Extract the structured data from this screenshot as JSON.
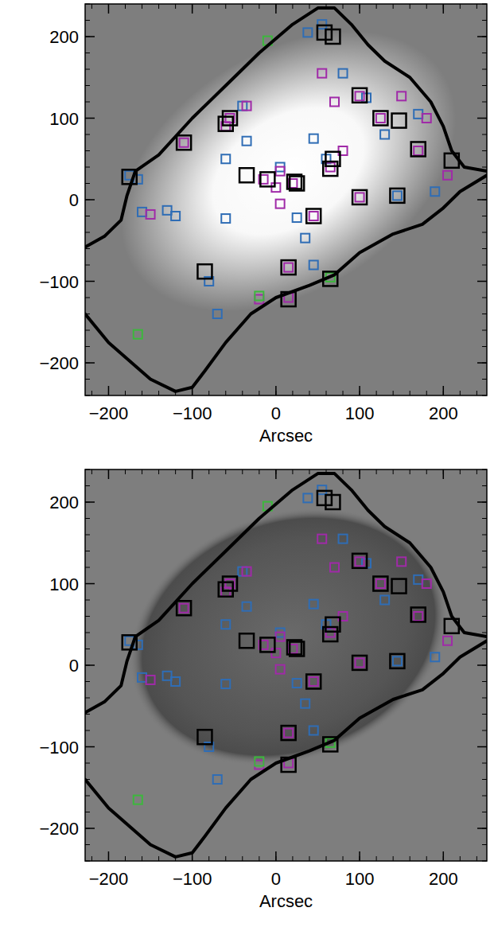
{
  "chart_data": [
    {
      "type": "scatter",
      "x_label": "Arcsec",
      "xlim": [
        -228,
        252
      ],
      "ylim": [
        -240,
        240
      ],
      "xticks": [
        {
          "value": -200,
          "label": "−200"
        },
        {
          "value": -100,
          "label": "−100"
        },
        0,
        100,
        200
      ],
      "yticks": [
        {
          "value": -200,
          "label": "−200"
        },
        {
          "value": -100,
          "label": "−100"
        },
        0,
        100,
        200
      ],
      "series": [
        {
          "color": "#2f6db5",
          "marker": "square",
          "x": [
            -165,
            -160,
            -130,
            -120,
            -60,
            -35,
            -40,
            -60,
            -80,
            -70,
            5,
            45,
            25,
            35,
            45,
            80,
            108,
            130,
            170,
            190,
            38,
            55,
            -175,
            60,
            145
          ],
          "values": [
            25,
            -15,
            -13,
            -20,
            50,
            72,
            115,
            -23,
            -100,
            -140,
            40,
            75,
            -22,
            -47,
            -80,
            155,
            125,
            80,
            105,
            10,
            205,
            215,
            30,
            50,
            5
          ]
        },
        {
          "color": "#a02aa8",
          "marker": "square",
          "x": [
            -150,
            -110,
            -55,
            -35,
            -60,
            0,
            5,
            5,
            -15,
            20,
            65,
            80,
            70,
            55,
            100,
            150,
            180,
            170,
            205,
            -20,
            15,
            15,
            45,
            100,
            125
          ],
          "values": [
            -18,
            70,
            100,
            115,
            90,
            15,
            35,
            -5,
            25,
            20,
            40,
            60,
            120,
            155,
            127,
            127,
            100,
            60,
            30,
            -122,
            -83,
            -120,
            -20,
            3,
            100
          ]
        },
        {
          "color": "#3cb83c",
          "marker": "square",
          "x": [
            -10,
            -165,
            -20,
            65
          ],
          "values": [
            195,
            -165,
            -118,
            -95
          ]
        },
        {
          "color": "#000000",
          "marker": "big-square",
          "x": [
            -110,
            -175,
            -55,
            -60,
            -35,
            -10,
            25,
            22,
            45,
            65,
            68,
            100,
            125,
            147,
            170,
            210,
            145,
            100,
            -85,
            15,
            15,
            65,
            58,
            68
          ],
          "values": [
            70,
            28,
            100,
            93,
            30,
            25,
            20,
            22,
            -20,
            38,
            50,
            128,
            100,
            97,
            62,
            48,
            5,
            3,
            -88,
            -83,
            -122,
            -97,
            205,
            200
          ]
        },
        {
          "type": "line",
          "color": "#000000",
          "line_style": "solid",
          "x": [
            -228,
            -205,
            -185,
            -178,
            -168,
            -140,
            -100,
            -60,
            -20,
            20,
            50,
            70,
            90,
            110,
            130,
            160,
            185,
            200,
            210,
            225,
            252
          ],
          "values": [
            -58,
            -45,
            -25,
            5,
            35,
            55,
            100,
            140,
            180,
            215,
            235,
            235,
            215,
            190,
            170,
            150,
            120,
            90,
            60,
            40,
            35
          ]
        },
        {
          "type": "line",
          "color": "#000000",
          "line_style": "solid",
          "x": [
            -228,
            -200,
            -150,
            -120,
            -100,
            -85,
            -60,
            -30,
            0,
            40,
            70,
            100,
            140,
            175,
            200,
            220,
            252
          ],
          "values": [
            -140,
            -175,
            -220,
            -235,
            -230,
            -210,
            -175,
            -140,
            -120,
            -105,
            -92,
            -65,
            -42,
            -30,
            -10,
            10,
            30
          ]
        }
      ]
    },
    {
      "type": "scatter",
      "x_label": "Arcsec",
      "xlim": [
        -228,
        252
      ],
      "ylim": [
        -240,
        240
      ],
      "xticks": [
        {
          "value": -200,
          "label": "−200"
        },
        {
          "value": -100,
          "label": "−100"
        },
        0,
        100,
        200
      ],
      "yticks": [
        {
          "value": -200,
          "label": "−200"
        },
        {
          "value": -100,
          "label": "−100"
        },
        0,
        100,
        200
      ],
      "series": [
        {
          "color": "#2f6db5",
          "marker": "square",
          "x": [
            -165,
            -160,
            -130,
            -120,
            -60,
            -35,
            -40,
            -60,
            -80,
            -70,
            5,
            45,
            25,
            35,
            45,
            80,
            108,
            130,
            170,
            190,
            38,
            55,
            -175,
            60,
            145
          ],
          "values": [
            25,
            -15,
            -13,
            -20,
            50,
            72,
            115,
            -23,
            -100,
            -140,
            40,
            75,
            -22,
            -47,
            -80,
            155,
            125,
            80,
            105,
            10,
            205,
            215,
            30,
            50,
            5
          ]
        },
        {
          "color": "#a02aa8",
          "marker": "square",
          "x": [
            -150,
            -110,
            -55,
            -35,
            -60,
            0,
            5,
            5,
            -15,
            20,
            65,
            80,
            70,
            55,
            100,
            150,
            180,
            170,
            205,
            -20,
            15,
            15,
            45,
            100,
            125
          ],
          "values": [
            -18,
            70,
            100,
            115,
            90,
            15,
            35,
            -5,
            25,
            20,
            40,
            60,
            120,
            155,
            127,
            127,
            100,
            60,
            30,
            -122,
            -83,
            -120,
            -20,
            3,
            100
          ]
        },
        {
          "color": "#3cb83c",
          "marker": "square",
          "x": [
            -10,
            -165,
            -20,
            65
          ],
          "values": [
            195,
            -165,
            -118,
            -95
          ]
        },
        {
          "color": "#000000",
          "marker": "big-square",
          "x": [
            -110,
            -175,
            -55,
            -60,
            -35,
            -10,
            25,
            22,
            45,
            65,
            68,
            100,
            125,
            147,
            170,
            210,
            145,
            100,
            -85,
            15,
            15,
            65,
            58,
            68
          ],
          "values": [
            70,
            28,
            100,
            93,
            30,
            25,
            20,
            22,
            -20,
            38,
            50,
            128,
            100,
            97,
            62,
            48,
            5,
            3,
            -88,
            -83,
            -122,
            -97,
            205,
            200
          ]
        },
        {
          "type": "line",
          "color": "#000000",
          "line_style": "solid",
          "x": [
            -228,
            -205,
            -185,
            -178,
            -168,
            -140,
            -100,
            -60,
            -20,
            20,
            50,
            70,
            90,
            110,
            130,
            160,
            185,
            200,
            210,
            225,
            252
          ],
          "values": [
            -58,
            -45,
            -25,
            5,
            35,
            55,
            100,
            140,
            180,
            215,
            235,
            235,
            215,
            190,
            170,
            150,
            120,
            90,
            60,
            40,
            35
          ]
        },
        {
          "type": "line",
          "color": "#000000",
          "line_style": "solid",
          "x": [
            -228,
            -200,
            -150,
            -120,
            -100,
            -85,
            -60,
            -30,
            0,
            40,
            70,
            100,
            140,
            175,
            200,
            220,
            252
          ],
          "values": [
            -140,
            -175,
            -220,
            -235,
            -230,
            -210,
            -175,
            -140,
            -120,
            -105,
            -92,
            -65,
            -42,
            -30,
            -10,
            10,
            30
          ]
        }
      ]
    }
  ]
}
